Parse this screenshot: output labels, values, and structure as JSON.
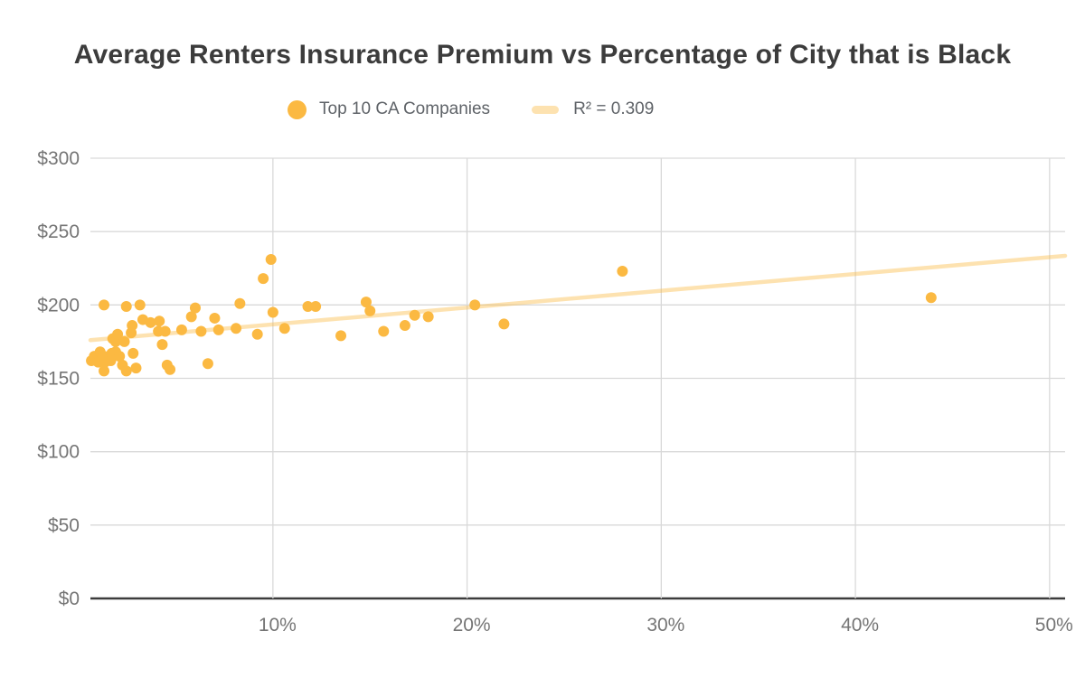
{
  "title": "Average Renters Insurance Premium vs Percentage of City that is Black",
  "legend": {
    "series_label": "Top 10 CA Companies",
    "trend_label": "R² = 0.309"
  },
  "colors": {
    "dot": "#FBB942",
    "trend": "rgba(251, 185, 66, 0.42)",
    "grid": "#d9d9d9",
    "axis": "#3c3c3c",
    "tick_label": "#757575",
    "background": "#ffffff"
  },
  "chart_data": {
    "type": "scatter",
    "title": "Average Renters Insurance Premium vs Percentage of City that is Black",
    "xlabel": "Percentage of City that is Black",
    "ylabel": "Average Renters Insurance Premium",
    "x_axis": {
      "min": 0.6,
      "max": 50.8,
      "ticks": [
        {
          "v": 10,
          "label": "10%"
        },
        {
          "v": 20,
          "label": "20%"
        },
        {
          "v": 30,
          "label": "30%"
        },
        {
          "v": 40,
          "label": "40%"
        },
        {
          "v": 50,
          "label": "50%"
        }
      ]
    },
    "y_axis": {
      "min": 0,
      "max": 300,
      "ticks": [
        {
          "v": 0,
          "label": "$0"
        },
        {
          "v": 50,
          "label": "$50"
        },
        {
          "v": 100,
          "label": "$100"
        },
        {
          "v": 150,
          "label": "$150"
        },
        {
          "v": 200,
          "label": "$200"
        },
        {
          "v": 250,
          "label": "$250"
        },
        {
          "v": 300,
          "label": "$300"
        }
      ]
    },
    "grid": true,
    "legend_position": "top",
    "series": [
      {
        "name": "Top 10 CA Companies",
        "points": [
          [
            0.65,
            162
          ],
          [
            0.8,
            165
          ],
          [
            1.0,
            161
          ],
          [
            1.1,
            168
          ],
          [
            1.3,
            200
          ],
          [
            1.3,
            165
          ],
          [
            1.35,
            161
          ],
          [
            1.3,
            155
          ],
          [
            1.7,
            167
          ],
          [
            1.65,
            162
          ],
          [
            1.75,
            177
          ],
          [
            1.9,
            175
          ],
          [
            1.9,
            168
          ],
          [
            2.0,
            180
          ],
          [
            2.1,
            165
          ],
          [
            2.25,
            159
          ],
          [
            2.35,
            175
          ],
          [
            2.45,
            199
          ],
          [
            2.45,
            155
          ],
          [
            2.7,
            181
          ],
          [
            2.75,
            186
          ],
          [
            2.8,
            167
          ],
          [
            2.95,
            157
          ],
          [
            3.15,
            200
          ],
          [
            3.3,
            190
          ],
          [
            3.7,
            188
          ],
          [
            4.1,
            182
          ],
          [
            4.15,
            189
          ],
          [
            4.3,
            173
          ],
          [
            4.45,
            182
          ],
          [
            4.55,
            159
          ],
          [
            4.7,
            156
          ],
          [
            5.3,
            183
          ],
          [
            5.8,
            192
          ],
          [
            6.0,
            198
          ],
          [
            6.3,
            182
          ],
          [
            6.65,
            160
          ],
          [
            7.0,
            191
          ],
          [
            7.2,
            183
          ],
          [
            8.1,
            184
          ],
          [
            8.3,
            201
          ],
          [
            9.2,
            180
          ],
          [
            9.5,
            218
          ],
          [
            9.9,
            231
          ],
          [
            10.0,
            195
          ],
          [
            10.6,
            184
          ],
          [
            11.8,
            199
          ],
          [
            12.2,
            199
          ],
          [
            13.5,
            179
          ],
          [
            14.8,
            202
          ],
          [
            15.0,
            196
          ],
          [
            15.7,
            182
          ],
          [
            16.8,
            186
          ],
          [
            17.3,
            193
          ],
          [
            18.0,
            192
          ],
          [
            20.4,
            200
          ],
          [
            21.9,
            187
          ],
          [
            28.0,
            223
          ],
          [
            43.9,
            205
          ]
        ]
      }
    ],
    "trendline": {
      "label": "R² = 0.309",
      "r2": 0.309,
      "start": [
        0.6,
        176
      ],
      "end": [
        50.8,
        233.5
      ]
    }
  }
}
